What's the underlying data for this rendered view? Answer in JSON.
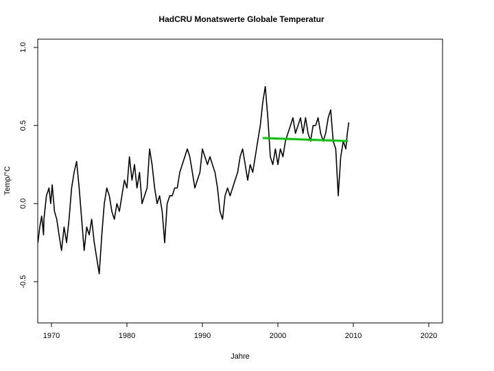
{
  "chart_data": {
    "type": "line",
    "title": "HadCRU Monatswerte Globale Temperatur",
    "x_label": "Jahre",
    "y_label": "Temp/°C",
    "xlim": [
      1968.18,
      2021.82
    ],
    "ylim": [
      -0.764,
      1.053
    ],
    "xticks": [
      1970,
      1980,
      1990,
      2000,
      2010,
      2020
    ],
    "yticks": [
      -0.5,
      {
        "value": 0,
        "label": "0.0"
      },
      0.5,
      {
        "value": 1,
        "label": "1.0"
      }
    ],
    "series": [
      {
        "color": "#000000",
        "width": 1.6,
        "x": [
          1968.2,
          1968.45,
          1968.7,
          1968.95,
          1969,
          1969.33,
          1969.67,
          1969.9,
          1970.1,
          1970.4,
          1970.7,
          1971,
          1971.33,
          1971.67,
          1972,
          1972.33,
          1972.67,
          1973,
          1973.33,
          1973.67,
          1974,
          1974.33,
          1974.67,
          1975,
          1975.33,
          1975.67,
          1976,
          1976.33,
          1976.67,
          1977,
          1977.33,
          1977.67,
          1978,
          1978.33,
          1978.67,
          1979,
          1979.33,
          1979.67,
          1980,
          1980.33,
          1980.67,
          1981,
          1981.33,
          1981.67,
          1982,
          1982.33,
          1982.67,
          1983,
          1983.33,
          1983.67,
          1984,
          1984.33,
          1984.67,
          1985,
          1985.33,
          1985.67,
          1986,
          1986.33,
          1986.67,
          1987,
          1987.33,
          1987.67,
          1988,
          1988.33,
          1988.67,
          1989,
          1989.33,
          1989.67,
          1990,
          1990.33,
          1990.67,
          1991,
          1991.33,
          1991.67,
          1992,
          1992.33,
          1992.67,
          1993,
          1993.33,
          1993.67,
          1994,
          1994.33,
          1994.67,
          1995,
          1995.33,
          1995.67,
          1996,
          1996.33,
          1996.67,
          1997,
          1997.33,
          1997.67,
          1998,
          1998.33,
          1998.67,
          1999,
          1999.33,
          1999.67,
          2000,
          2000.33,
          2000.67,
          2001,
          2001.33,
          2001.67,
          2002,
          2002.33,
          2002.67,
          2003,
          2003.33,
          2003.67,
          2004,
          2004.33,
          2004.67,
          2005,
          2005.33,
          2005.67,
          2006,
          2006.33,
          2006.67,
          2007,
          2007.33,
          2007.67,
          2008,
          2008.33,
          2008.67,
          2009,
          2009.2,
          2009.4
        ],
        "values": [
          -0.25,
          -0.15,
          -0.08,
          -0.2,
          -0.1,
          0.05,
          0.1,
          0.0,
          0.12,
          -0.05,
          -0.1,
          -0.2,
          -0.3,
          -0.15,
          -0.25,
          -0.1,
          0.1,
          0.2,
          0.27,
          0.1,
          -0.1,
          -0.3,
          -0.15,
          -0.2,
          -0.1,
          -0.25,
          -0.35,
          -0.45,
          -0.2,
          0.0,
          0.1,
          0.05,
          -0.05,
          -0.1,
          0.0,
          -0.05,
          0.05,
          0.15,
          0.1,
          0.3,
          0.15,
          0.25,
          0.1,
          0.2,
          0.0,
          0.05,
          0.1,
          0.35,
          0.25,
          0.1,
          0.0,
          0.05,
          -0.05,
          -0.25,
          0.0,
          0.05,
          0.05,
          0.1,
          0.1,
          0.2,
          0.25,
          0.3,
          0.35,
          0.3,
          0.2,
          0.1,
          0.15,
          0.2,
          0.35,
          0.3,
          0.25,
          0.3,
          0.25,
          0.2,
          0.1,
          -0.05,
          -0.1,
          0.05,
          0.1,
          0.05,
          0.1,
          0.15,
          0.2,
          0.3,
          0.35,
          0.25,
          0.15,
          0.25,
          0.2,
          0.3,
          0.4,
          0.5,
          0.65,
          0.75,
          0.55,
          0.3,
          0.25,
          0.35,
          0.25,
          0.35,
          0.3,
          0.4,
          0.45,
          0.5,
          0.55,
          0.45,
          0.5,
          0.55,
          0.45,
          0.55,
          0.45,
          0.4,
          0.5,
          0.5,
          0.55,
          0.45,
          0.4,
          0.45,
          0.55,
          0.6,
          0.4,
          0.35,
          0.05,
          0.3,
          0.4,
          0.35,
          0.45,
          0.52
        ]
      },
      {
        "color": "#00cc00",
        "width": 3,
        "x": [
          1998,
          2009.3
        ],
        "values": [
          0.42,
          0.4
        ]
      }
    ]
  }
}
